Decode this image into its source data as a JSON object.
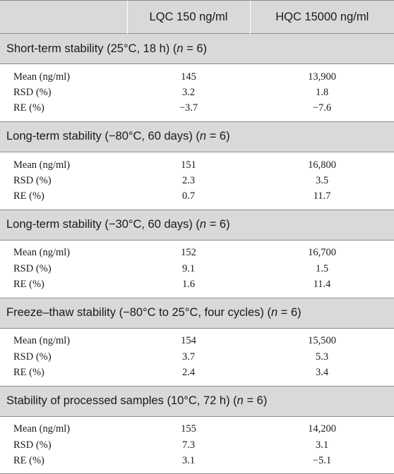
{
  "header": {
    "col0": "",
    "col1": "LQC 150 ng/ml",
    "col2": "HQC 15000 ng/ml"
  },
  "sections": [
    {
      "title_prefix": "Short-term stability (25°C, 18 h) (",
      "title_italic": "n",
      "title_suffix": " = 6)",
      "rows": [
        {
          "label": "Mean (ng/ml)",
          "lqc": "145",
          "hqc": "13,900"
        },
        {
          "label": "RSD (%)",
          "lqc": "3.2",
          "hqc": "1.8"
        },
        {
          "label": "RE (%)",
          "lqc": "−3.7",
          "hqc": "−7.6"
        }
      ]
    },
    {
      "title_prefix": "Long-term stability (−80°C, 60 days) (",
      "title_italic": "n",
      "title_suffix": " = 6)",
      "rows": [
        {
          "label": "Mean (ng/ml)",
          "lqc": "151",
          "hqc": "16,800"
        },
        {
          "label": "RSD (%)",
          "lqc": "2.3",
          "hqc": "3.5"
        },
        {
          "label": "RE (%)",
          "lqc": "0.7",
          "hqc": "11.7"
        }
      ]
    },
    {
      "title_prefix": "Long-term stability (−30°C, 60 days) (",
      "title_italic": "n",
      "title_suffix": " = 6)",
      "rows": [
        {
          "label": "Mean (ng/ml)",
          "lqc": "152",
          "hqc": "16,700"
        },
        {
          "label": "RSD (%)",
          "lqc": "9.1",
          "hqc": "1.5"
        },
        {
          "label": "RE (%)",
          "lqc": "1.6",
          "hqc": "11.4"
        }
      ]
    },
    {
      "title_prefix": "Freeze–thaw stability (−80°C to 25°C, four cycles) (",
      "title_italic": "n",
      "title_suffix": " = 6)",
      "rows": [
        {
          "label": "Mean (ng/ml)",
          "lqc": "154",
          "hqc": "15,500"
        },
        {
          "label": "RSD (%)",
          "lqc": "3.7",
          "hqc": "5.3"
        },
        {
          "label": "RE (%)",
          "lqc": "2.4",
          "hqc": "3.4"
        }
      ]
    },
    {
      "title_prefix": "Stability of processed samples (10°C, 72 h) (",
      "title_italic": "n",
      "title_suffix": " = 6)",
      "rows": [
        {
          "label": "Mean (ng/ml)",
          "lqc": "155",
          "hqc": "14,200"
        },
        {
          "label": "RSD (%)",
          "lqc": "7.3",
          "hqc": "3.1"
        },
        {
          "label": "RE (%)",
          "lqc": "3.1",
          "hqc": "−5.1"
        }
      ]
    }
  ]
}
